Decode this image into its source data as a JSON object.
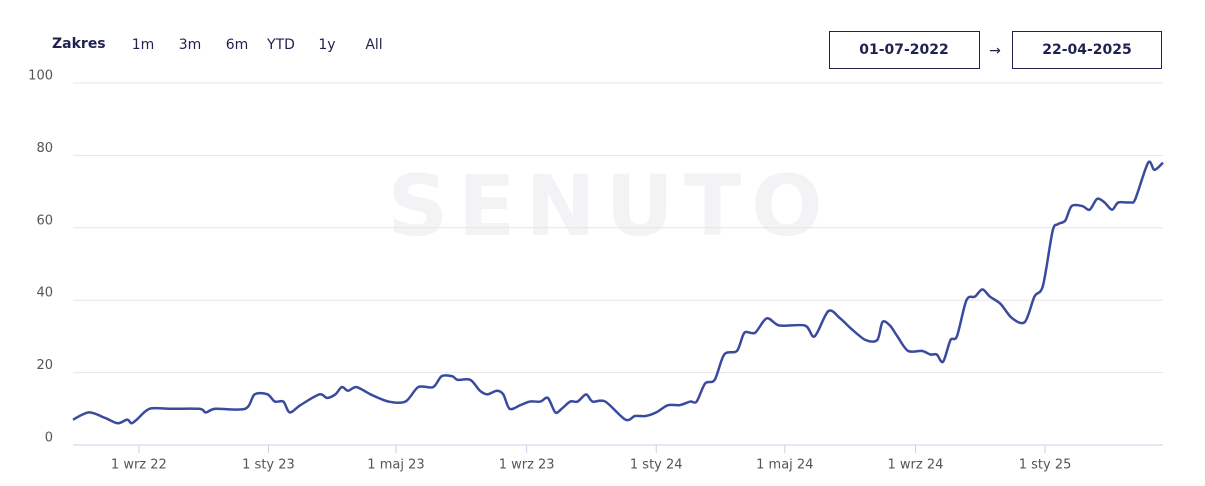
{
  "header": {
    "label": "Zakres",
    "ranges": [
      "1m",
      "3m",
      "6m",
      "YTD",
      "1y",
      "All"
    ],
    "date_from": "01-07-2022",
    "arrow": "→",
    "date_to": "22-04-2025"
  },
  "watermark": "SENUTO",
  "chart_data": {
    "type": "line",
    "x": [
      "2022-07-01",
      "2022-07-16",
      "2022-07-31",
      "2022-08-12",
      "2022-08-21",
      "2022-08-25",
      "2022-08-30",
      "2022-09-11",
      "2022-09-30",
      "2022-10-28",
      "2022-11-03",
      "2022-11-12",
      "2022-12-10",
      "2022-12-19",
      "2022-12-31",
      "2023-01-07",
      "2023-01-15",
      "2023-01-21",
      "2023-01-31",
      "2023-02-18",
      "2023-02-25",
      "2023-03-05",
      "2023-03-11",
      "2023-03-17",
      "2023-03-25",
      "2023-04-07",
      "2023-04-24",
      "2023-05-10",
      "2023-05-22",
      "2023-06-05",
      "2023-06-13",
      "2023-06-23",
      "2023-06-28",
      "2023-07-10",
      "2023-07-19",
      "2023-07-26",
      "2023-08-04",
      "2023-08-10",
      "2023-08-16",
      "2023-08-26",
      "2023-09-04",
      "2023-09-14",
      "2023-09-21",
      "2023-09-28",
      "2023-10-04",
      "2023-10-12",
      "2023-10-19",
      "2023-10-27",
      "2023-11-02",
      "2023-11-14",
      "2023-12-03",
      "2023-12-12",
      "2023-12-22",
      "2024-01-01",
      "2024-01-12",
      "2024-01-23",
      "2024-02-02",
      "2024-02-08",
      "2024-02-16",
      "2024-02-25",
      "2024-03-05",
      "2024-03-17",
      "2024-03-24",
      "2024-04-03",
      "2024-04-14",
      "2024-04-26",
      "2024-05-20",
      "2024-05-29",
      "2024-06-11",
      "2024-06-22",
      "2024-07-03",
      "2024-07-16",
      "2024-07-27",
      "2024-08-01",
      "2024-08-08",
      "2024-08-15",
      "2024-08-25",
      "2024-09-07",
      "2024-09-15",
      "2024-09-21",
      "2024-09-27",
      "2024-10-04",
      "2024-10-10",
      "2024-10-19",
      "2024-10-27",
      "2024-11-03",
      "2024-11-10",
      "2024-11-20",
      "2024-12-01",
      "2024-12-13",
      "2024-12-22",
      "2024-12-30",
      "2025-01-08",
      "2025-01-13",
      "2025-01-20",
      "2025-01-26",
      "2025-02-05",
      "2025-02-12",
      "2025-02-19",
      "2025-02-26",
      "2025-03-05",
      "2025-03-11",
      "2025-03-22",
      "2025-03-27",
      "2025-04-08",
      "2025-04-14",
      "2025-04-22"
    ],
    "series": [
      {
        "color": "#3a4a9f",
        "values": [
          7,
          9,
          7.5,
          6,
          7,
          6,
          7,
          10,
          10,
          10,
          9,
          10,
          10,
          14,
          14,
          12,
          12,
          9,
          11,
          14,
          13,
          14,
          16,
          15,
          16,
          14,
          12,
          12,
          16,
          16,
          19,
          19,
          18,
          18,
          15,
          14,
          15,
          14,
          10,
          11,
          12,
          12,
          13,
          9,
          10,
          12,
          12,
          14,
          12,
          12,
          7,
          8,
          8,
          9,
          11,
          11,
          12,
          12,
          17,
          18,
          25,
          26,
          31,
          31,
          35,
          33,
          33,
          30,
          37,
          35,
          32,
          29,
          29,
          34,
          33,
          30,
          26,
          26,
          25,
          25,
          23,
          29,
          30,
          40,
          41,
          43,
          41,
          39,
          35,
          34,
          41,
          44,
          59,
          61,
          62,
          66,
          66,
          65,
          68,
          67,
          65,
          67,
          67,
          68,
          78,
          76,
          78
        ]
      }
    ],
    "xlim": [
      "2022-07-01",
      "2025-04-22"
    ],
    "xticks": [
      {
        "value": "2022-09-01",
        "label": "1 wrz 22"
      },
      {
        "value": "2023-01-01",
        "label": "1 sty 23"
      },
      {
        "value": "2023-05-01",
        "label": "1 maj 23"
      },
      {
        "value": "2023-09-01",
        "label": "1 wrz 23"
      },
      {
        "value": "2024-01-01",
        "label": "1 sty 24"
      },
      {
        "value": "2024-05-01",
        "label": "1 maj 24"
      },
      {
        "value": "2024-09-01",
        "label": "1 wrz 24"
      },
      {
        "value": "2025-01-01",
        "label": "1 sty 25"
      }
    ],
    "ylim": [
      0,
      100
    ],
    "yticks": [
      0,
      20,
      40,
      60,
      80,
      100
    ],
    "grid": true
  }
}
